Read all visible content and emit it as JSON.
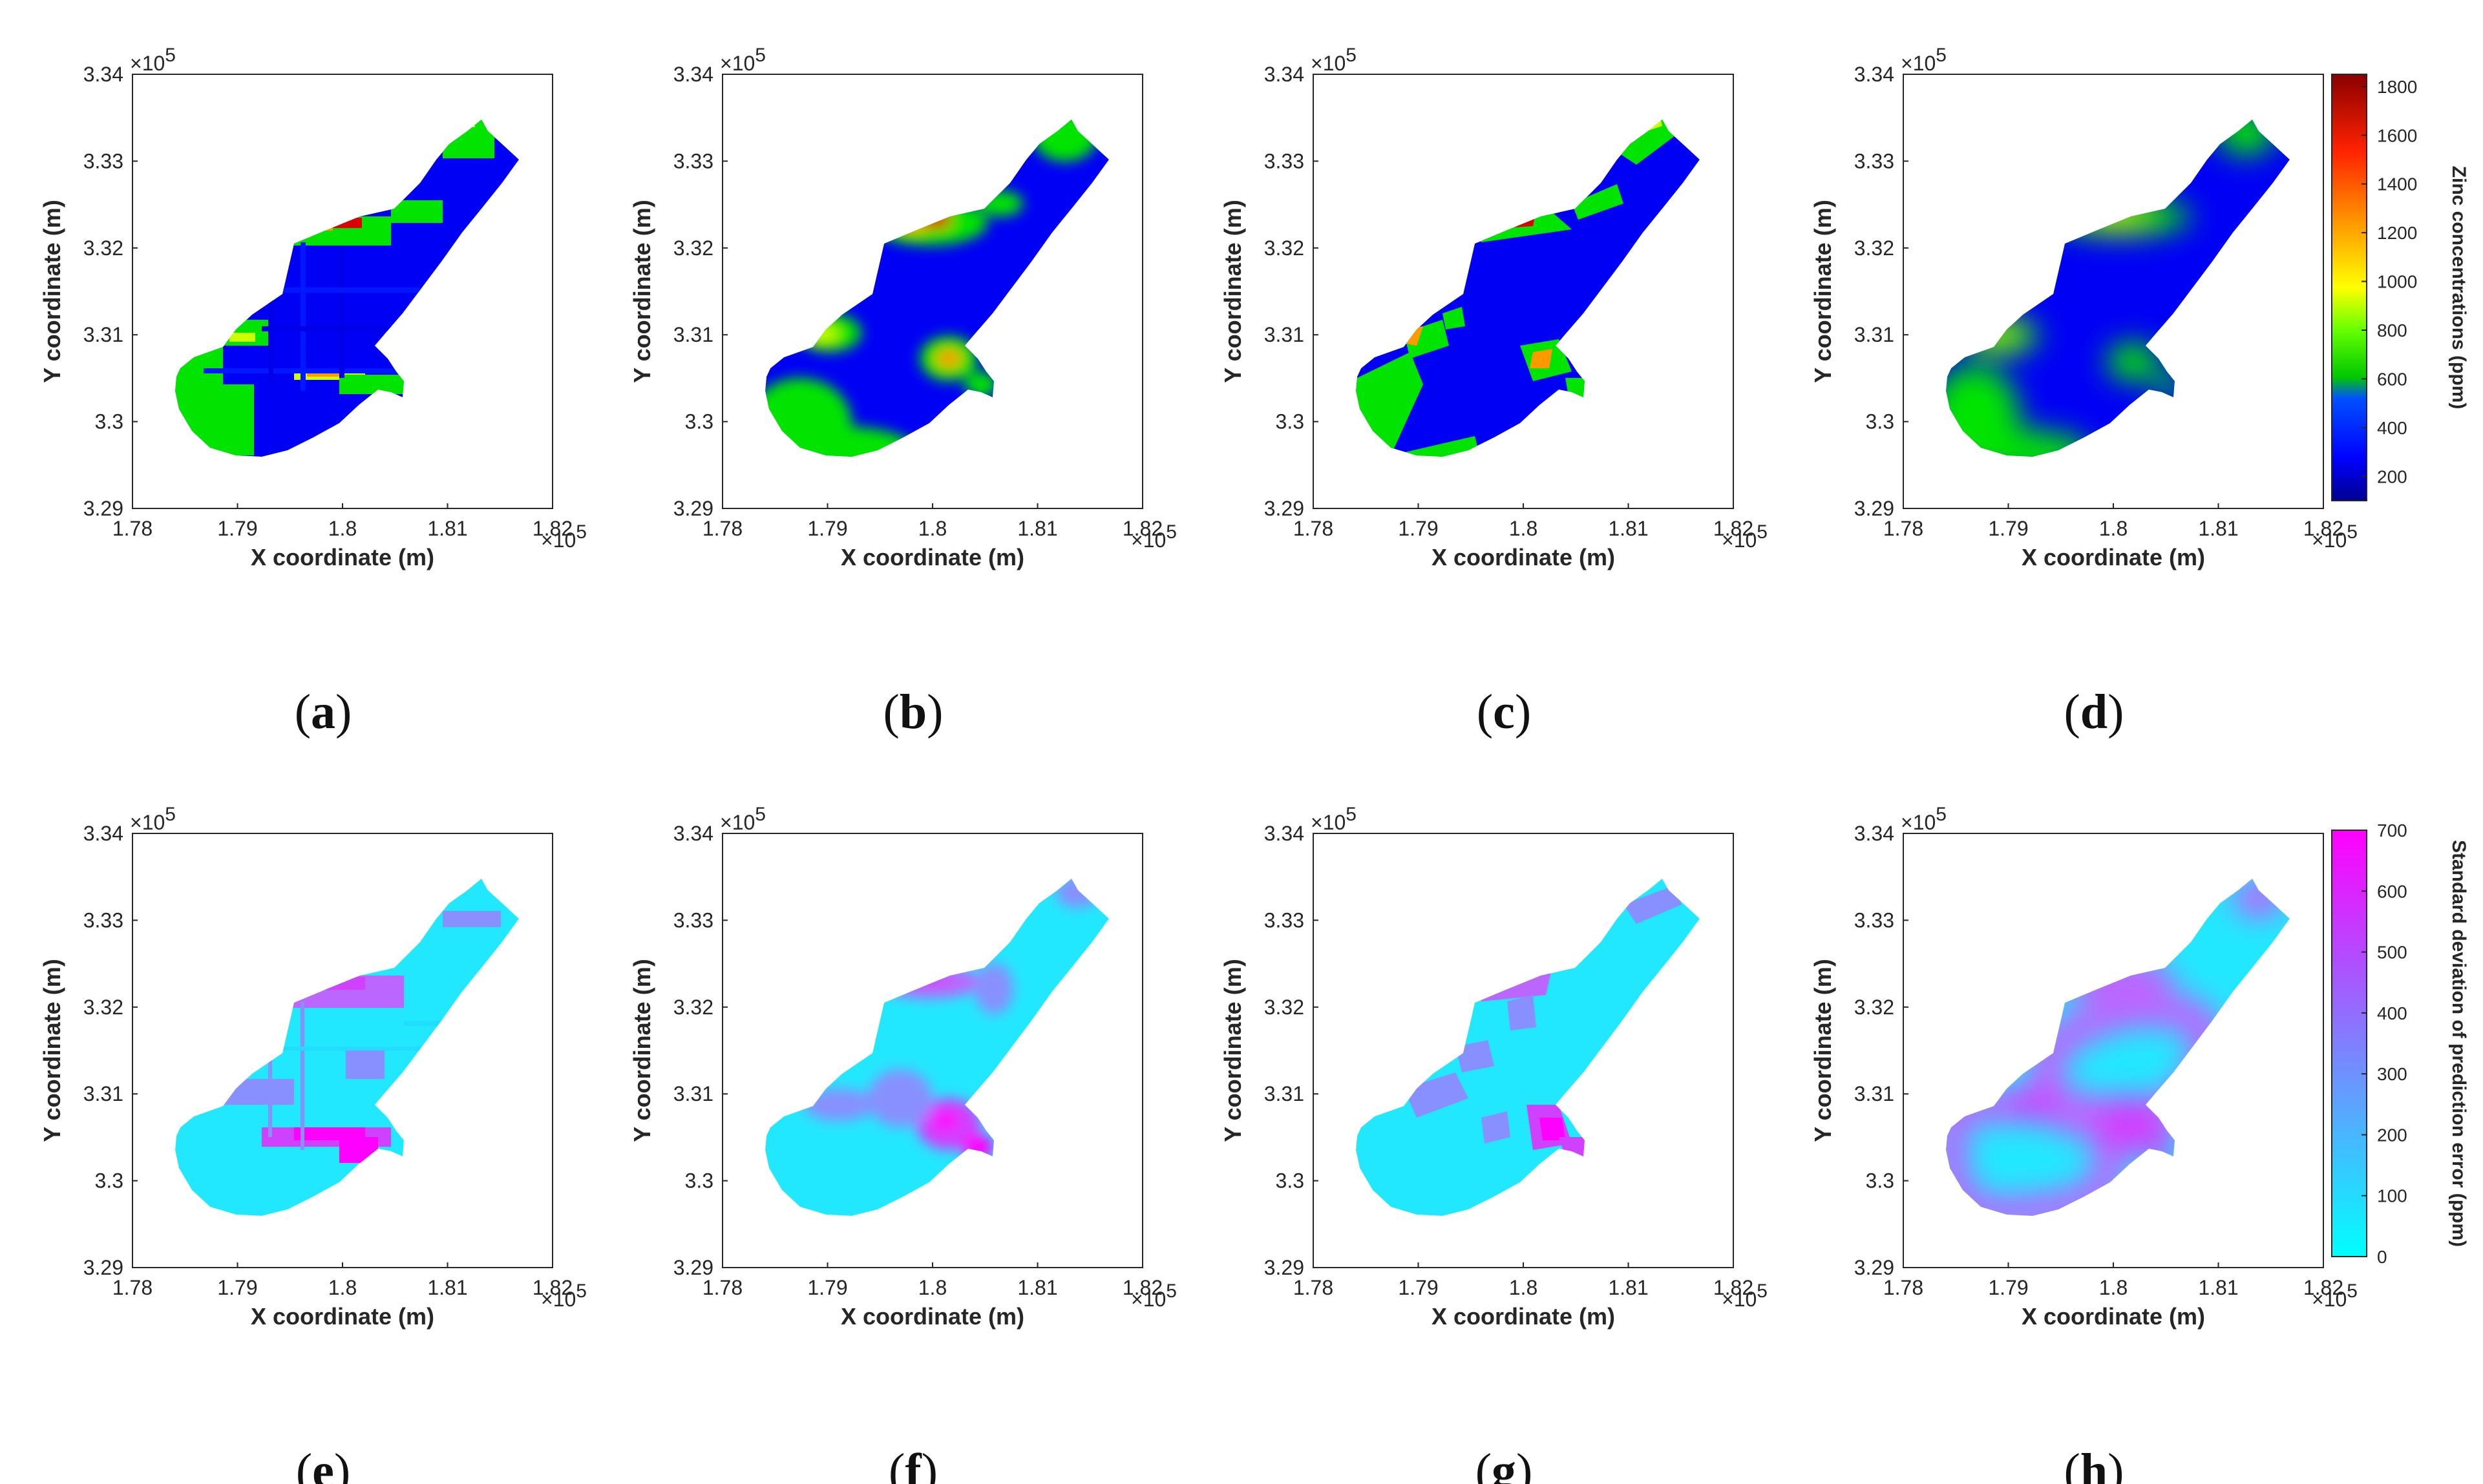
{
  "chart_data": [
    {
      "id": "a",
      "type": "heatmap",
      "caption": "a",
      "colormap": "zinc",
      "method": "blocky",
      "xlabel": "X coordinate (m)",
      "ylabel": "Y coordinate (m)",
      "x_ticks": [
        "1.78",
        "1.79",
        "1.8",
        "1.81",
        "1.82"
      ],
      "y_ticks": [
        "3.29",
        "3.3",
        "3.31",
        "3.32",
        "3.33",
        "3.34"
      ],
      "x_multiplier": "×10",
      "y_multiplier": "×10",
      "exponent": "5",
      "xlim": [
        178000,
        182000
      ],
      "ylim": [
        329000,
        334000
      ]
    },
    {
      "id": "b",
      "type": "heatmap",
      "caption": "b",
      "colormap": "zinc",
      "method": "smooth",
      "xlabel": "X coordinate (m)",
      "ylabel": "Y coordinate (m)",
      "x_ticks": [
        "1.78",
        "1.79",
        "1.8",
        "1.81",
        "1.82"
      ],
      "y_ticks": [
        "3.29",
        "3.3",
        "3.31",
        "3.32",
        "3.33",
        "3.34"
      ],
      "x_multiplier": "×10",
      "y_multiplier": "×10",
      "exponent": "5",
      "xlim": [
        178000,
        182000
      ],
      "ylim": [
        329000,
        334000
      ]
    },
    {
      "id": "c",
      "type": "heatmap",
      "caption": "c",
      "colormap": "zinc",
      "method": "polygonal",
      "xlabel": "X coordinate (m)",
      "ylabel": "Y coordinate (m)",
      "x_ticks": [
        "1.78",
        "1.79",
        "1.8",
        "1.81",
        "1.82"
      ],
      "y_ticks": [
        "3.29",
        "3.3",
        "3.31",
        "3.32",
        "3.33",
        "3.34"
      ],
      "x_multiplier": "×10",
      "y_multiplier": "×10",
      "exponent": "5",
      "xlim": [
        178000,
        182000
      ],
      "ylim": [
        329000,
        334000
      ]
    },
    {
      "id": "d",
      "type": "heatmap",
      "caption": "d",
      "colormap": "zinc",
      "method": "smoothest",
      "xlabel": "X coordinate (m)",
      "ylabel": "Y coordinate (m)",
      "x_ticks": [
        "1.78",
        "1.79",
        "1.8",
        "1.81",
        "1.82"
      ],
      "y_ticks": [
        "3.29",
        "3.3",
        "3.31",
        "3.32",
        "3.33",
        "3.34"
      ],
      "x_multiplier": "×10",
      "y_multiplier": "×10",
      "exponent": "5",
      "xlim": [
        178000,
        182000
      ],
      "ylim": [
        329000,
        334000
      ]
    },
    {
      "id": "e",
      "type": "heatmap",
      "caption": "e",
      "colormap": "sd",
      "method": "blocky",
      "xlabel": "X coordinate (m)",
      "ylabel": "Y coordinate (m)",
      "x_ticks": [
        "1.78",
        "1.79",
        "1.8",
        "1.81",
        "1.82"
      ],
      "y_ticks": [
        "3.29",
        "3.3",
        "3.31",
        "3.32",
        "3.33",
        "3.34"
      ],
      "x_multiplier": "×10",
      "y_multiplier": "×10",
      "exponent": "5",
      "xlim": [
        178000,
        182000
      ],
      "ylim": [
        329000,
        334000
      ]
    },
    {
      "id": "f",
      "type": "heatmap",
      "caption": "f",
      "colormap": "sd",
      "method": "smooth",
      "xlabel": "X coordinate (m)",
      "ylabel": "Y coordinate (m)",
      "x_ticks": [
        "1.78",
        "1.79",
        "1.8",
        "1.81",
        "1.82"
      ],
      "y_ticks": [
        "3.29",
        "3.3",
        "3.31",
        "3.32",
        "3.33",
        "3.34"
      ],
      "x_multiplier": "×10",
      "y_multiplier": "×10",
      "exponent": "5",
      "xlim": [
        178000,
        182000
      ],
      "ylim": [
        329000,
        334000
      ]
    },
    {
      "id": "g",
      "type": "heatmap",
      "caption": "g",
      "colormap": "sd",
      "method": "polygonal",
      "xlabel": "X coordinate (m)",
      "ylabel": "Y coordinate (m)",
      "x_ticks": [
        "1.78",
        "1.79",
        "1.8",
        "1.81",
        "1.82"
      ],
      "y_ticks": [
        "3.29",
        "3.3",
        "3.31",
        "3.32",
        "3.33",
        "3.34"
      ],
      "x_multiplier": "×10",
      "y_multiplier": "×10",
      "exponent": "5",
      "xlim": [
        178000,
        182000
      ],
      "ylim": [
        329000,
        334000
      ]
    },
    {
      "id": "h",
      "type": "heatmap",
      "caption": "h",
      "colormap": "sd",
      "method": "smoothest",
      "xlabel": "X coordinate (m)",
      "ylabel": "Y coordinate (m)",
      "x_ticks": [
        "1.78",
        "1.79",
        "1.8",
        "1.81",
        "1.82"
      ],
      "y_ticks": [
        "3.29",
        "3.3",
        "3.31",
        "3.32",
        "3.33",
        "3.34"
      ],
      "x_multiplier": "×10",
      "y_multiplier": "×10",
      "exponent": "5",
      "xlim": [
        178000,
        182000
      ],
      "ylim": [
        329000,
        334000
      ]
    }
  ],
  "colorbars": [
    {
      "id": "zinc",
      "label": "Zinc concentrations (ppm)",
      "min": 100,
      "max": 1850,
      "ticks": [
        "200",
        "400",
        "600",
        "800",
        "1000",
        "1200",
        "1400",
        "1600",
        "1800"
      ],
      "tick_values": [
        200,
        400,
        600,
        800,
        1000,
        1200,
        1400,
        1600,
        1800
      ],
      "colors": [
        "#00008f",
        "#0000ff",
        "#00c800",
        "#66ff00",
        "#ffff00",
        "#ff9900",
        "#ff2200",
        "#8b0000"
      ]
    },
    {
      "id": "sd",
      "label": "Standard deviation of prediction error (ppm)",
      "min": 0,
      "max": 700,
      "ticks": [
        "0",
        "100",
        "200",
        "300",
        "400",
        "500",
        "600",
        "700"
      ],
      "tick_values": [
        0,
        100,
        200,
        300,
        400,
        500,
        600,
        700
      ],
      "colors": [
        "#00ffff",
        "#ff00ff"
      ]
    }
  ],
  "colors": {
    "zinc_blue": "#0000ff",
    "zinc_green": "#00e000",
    "zinc_red": "#dd0000",
    "sd_cyan": "#00ffff",
    "sd_magenta": "#ff00ff"
  }
}
